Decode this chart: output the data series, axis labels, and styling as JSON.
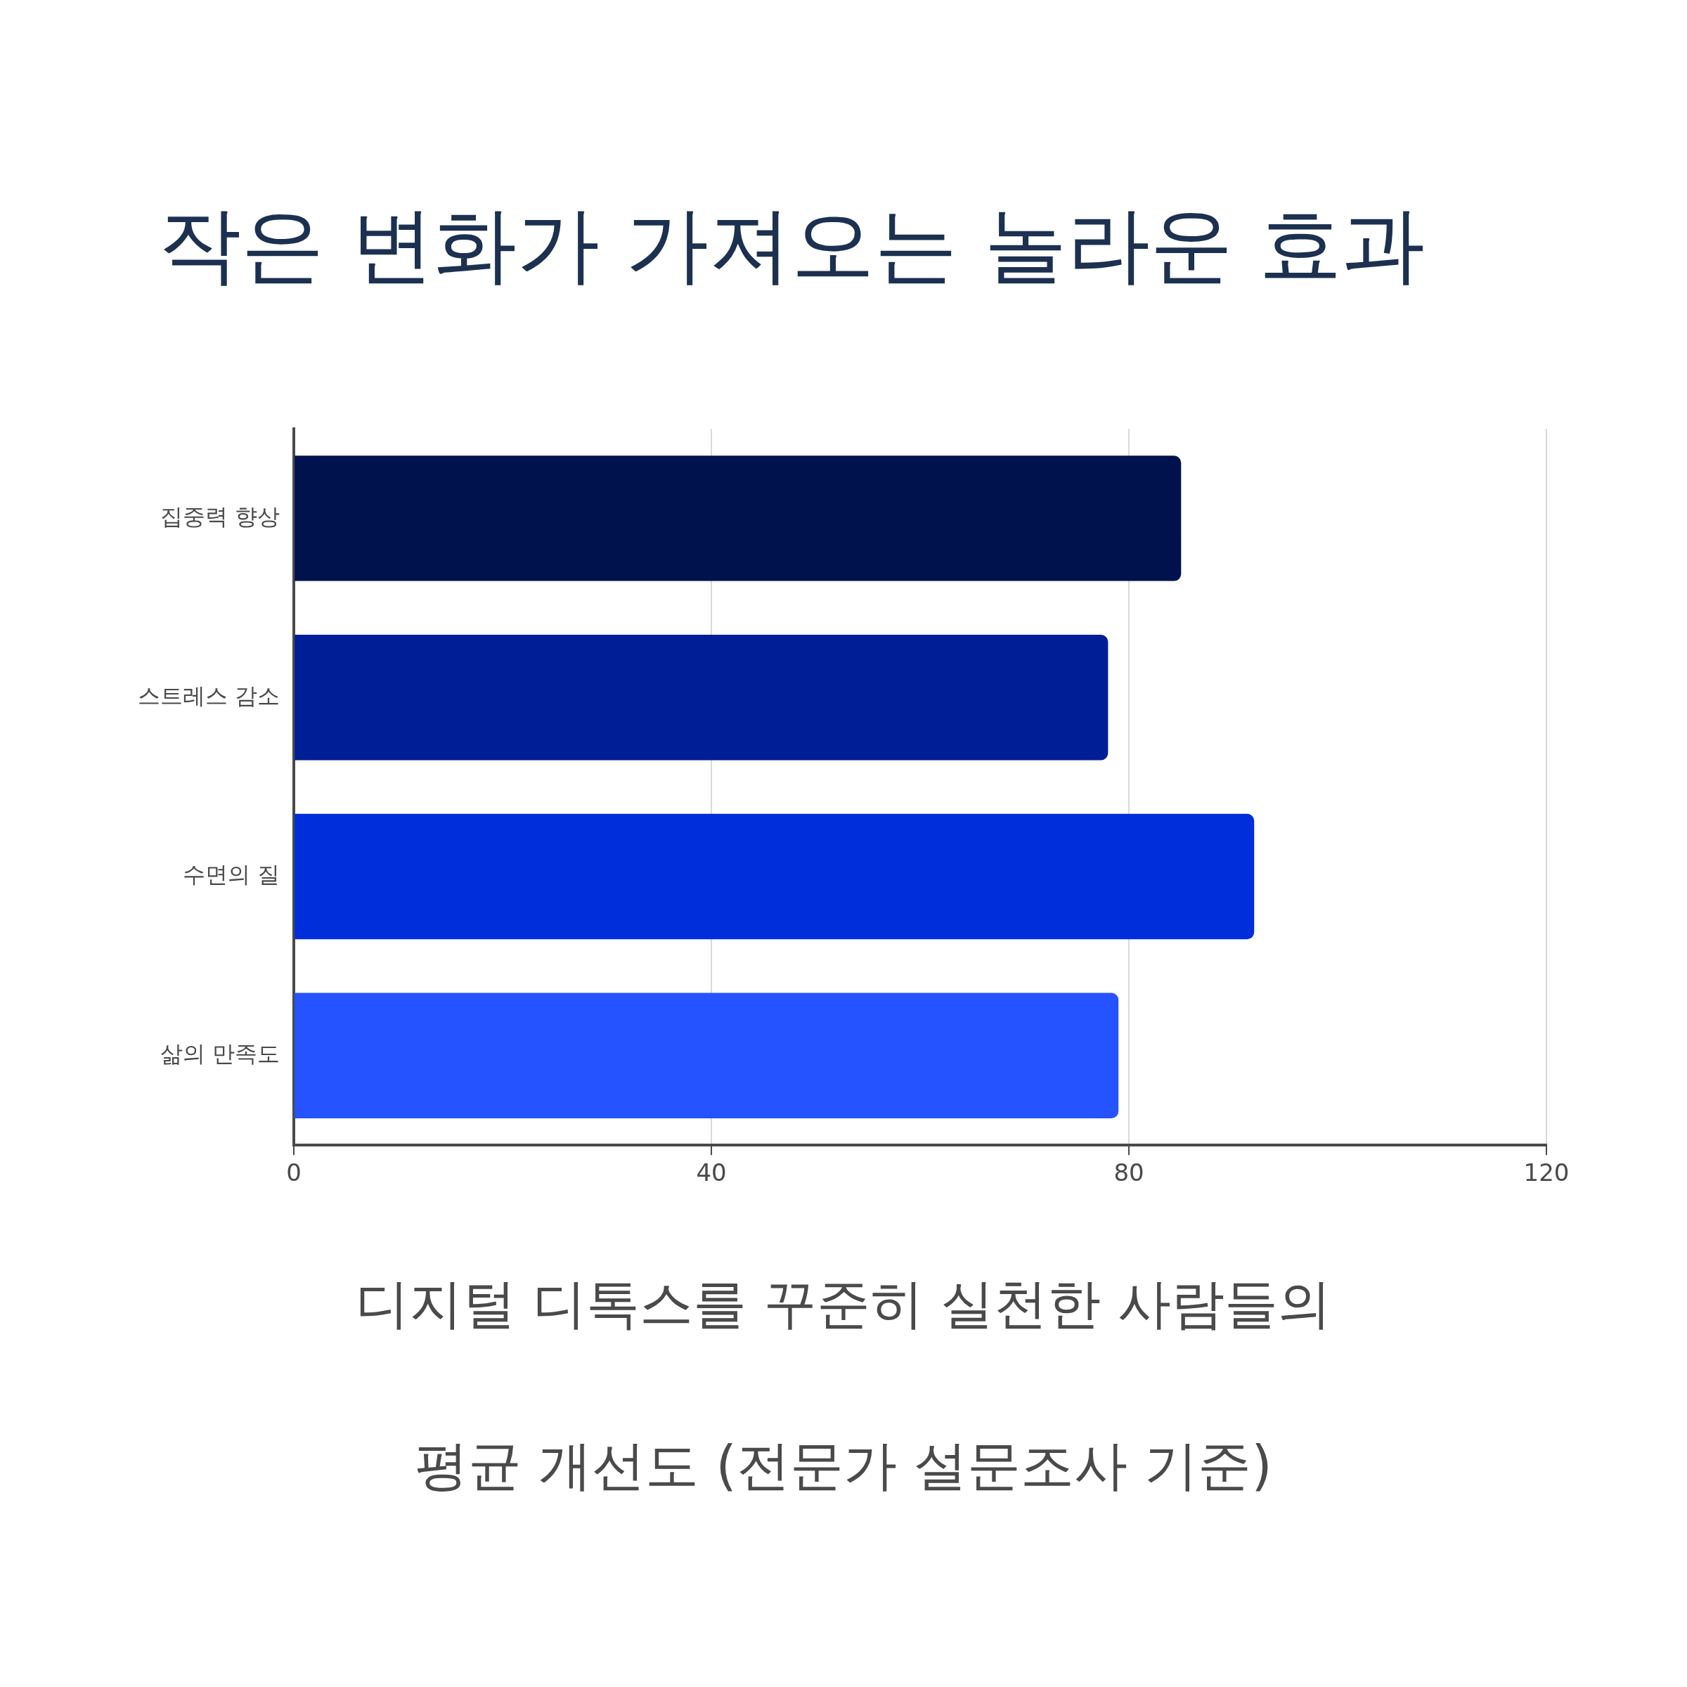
{
  "chart_data": {
    "type": "bar",
    "orientation": "horizontal",
    "title": "작은 변화가 가져오는 놀라운 효과",
    "xlabel": "디지털 디톡스를 꾸준히 실천한 사람들의 평균 개선도 (전문가 설문조사 기준)",
    "categories": [
      "집중력 향상",
      "스트레스 감소",
      "수면의 질",
      "삶의 만족도"
    ],
    "values": [
      85,
      78,
      92,
      79
    ],
    "colors": [
      "#00124d",
      "#001f96",
      "#002edb",
      "#2553ff"
    ],
    "xlim": [
      0,
      120
    ],
    "xticks": [
      0,
      40,
      80,
      120
    ],
    "grid": "x",
    "legend": false
  }
}
